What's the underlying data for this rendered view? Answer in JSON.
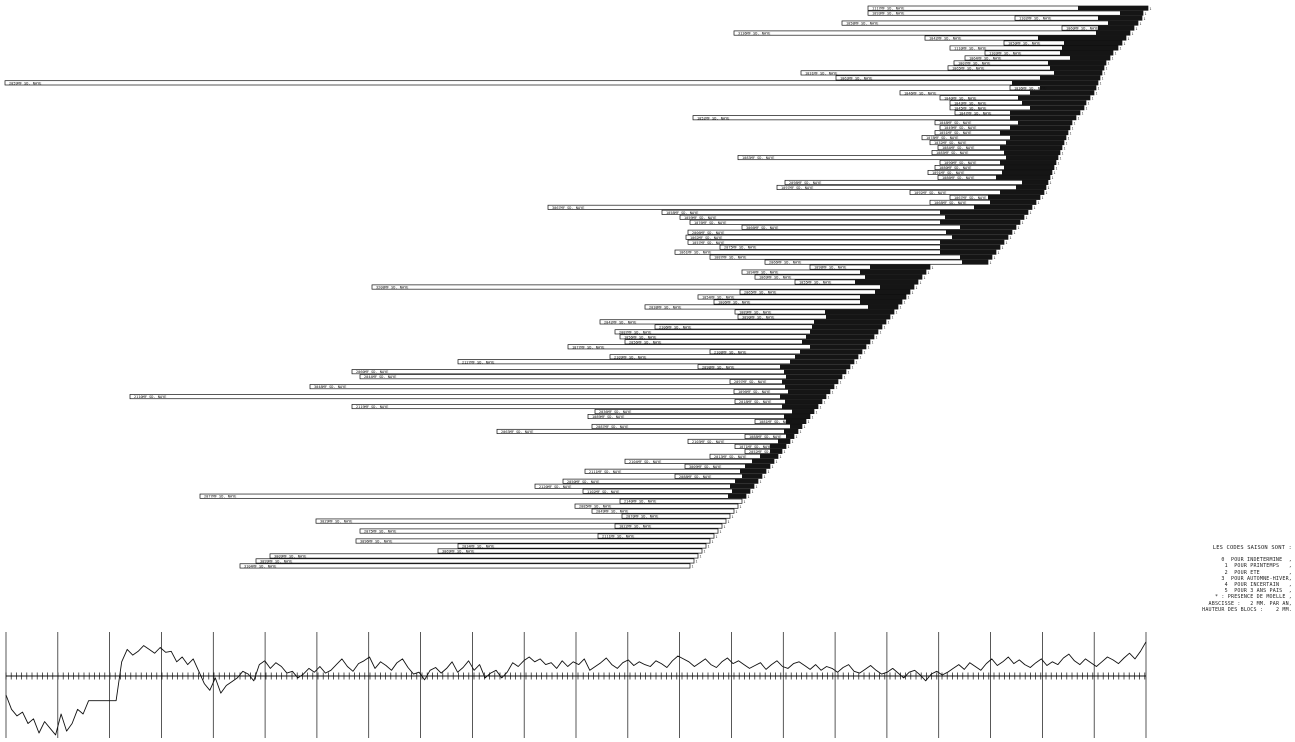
{
  "chart_data": {
    "type": "bar",
    "description_kind": "dendrochronology block diagram: horizontal sample bars (white = sapwood-free rings, black = sapwood/last rings) aligned on a common end axis, with a master chronology curve below",
    "sample_label_suffix": "SD. NAYE",
    "samples": [
      {
        "id": "1117MF",
        "start": 868,
        "end": 1148,
        "black_from": 1078
      },
      {
        "id": "1093MF",
        "start": 868,
        "end": 1143,
        "black_from": 1120
      },
      {
        "id": "1102MF",
        "start": 1015,
        "end": 1142,
        "black_from": 1098
      },
      {
        "id": "1058MF",
        "start": 842,
        "end": 1138,
        "black_from": 1108
      },
      {
        "id": "1060MF",
        "start": 1062,
        "end": 1134,
        "black_from": 1098
      },
      {
        "id": "3136MF",
        "start": 734,
        "end": 1130,
        "black_from": 1096
      },
      {
        "id": "1042MF",
        "start": 925,
        "end": 1126,
        "black_from": 1038
      },
      {
        "id": "1050MF",
        "start": 1004,
        "end": 1122,
        "black_from": 1064
      },
      {
        "id": "1110MF",
        "start": 950,
        "end": 1118,
        "black_from": 1062
      },
      {
        "id": "1103MF",
        "start": 985,
        "end": 1113,
        "black_from": 1060
      },
      {
        "id": "1064MF",
        "start": 965,
        "end": 1110,
        "black_from": 1070
      },
      {
        "id": "1007MF",
        "start": 954,
        "end": 1106,
        "black_from": 1048
      },
      {
        "id": "1065MF",
        "start": 948,
        "end": 1104,
        "black_from": 1050
      },
      {
        "id": "1031MF",
        "start": 801,
        "end": 1102,
        "black_from": 1054
      },
      {
        "id": "1063MF",
        "start": 836,
        "end": 1100,
        "black_from": 1040
      },
      {
        "id": "2059MF",
        "start": 5,
        "end": 1098,
        "black_from": 1012
      },
      {
        "id": "1036MF",
        "start": 1010,
        "end": 1096,
        "black_from": 1040
      },
      {
        "id": "1046MF",
        "start": 900,
        "end": 1094,
        "black_from": 1030
      },
      {
        "id": "1040MF",
        "start": 940,
        "end": 1090,
        "black_from": 1018
      },
      {
        "id": "1043MF",
        "start": 950,
        "end": 1086,
        "black_from": 1022
      },
      {
        "id": "1045MF",
        "start": 950,
        "end": 1084,
        "black_from": 1030
      },
      {
        "id": "1047MF",
        "start": 955,
        "end": 1080,
        "black_from": 1010
      },
      {
        "id": "1052MF",
        "start": 693,
        "end": 1076,
        "black_from": 1010
      },
      {
        "id": "1048MF",
        "start": 935,
        "end": 1072,
        "black_from": 1018
      },
      {
        "id": "1049MF",
        "start": 940,
        "end": 1070,
        "black_from": 1010
      },
      {
        "id": "1051MF",
        "start": 935,
        "end": 1068,
        "black_from": 1000
      },
      {
        "id": "1078MF",
        "start": 922,
        "end": 1066,
        "black_from": 1010
      },
      {
        "id": "1032MF",
        "start": 930,
        "end": 1064,
        "black_from": 1006
      },
      {
        "id": "1084MF",
        "start": 938,
        "end": 1062,
        "black_from": 1000
      },
      {
        "id": "1085MF",
        "start": 932,
        "end": 1060,
        "black_from": 1004
      },
      {
        "id": "1083MF",
        "start": 738,
        "end": 1058,
        "black_from": 1006
      },
      {
        "id": "1090MF",
        "start": 940,
        "end": 1056,
        "black_from": 1000
      },
      {
        "id": "1080MF",
        "start": 935,
        "end": 1054,
        "black_from": 1004
      },
      {
        "id": "1091MF",
        "start": 928,
        "end": 1052,
        "black_from": 1002
      },
      {
        "id": "1086MF",
        "start": 938,
        "end": 1050,
        "black_from": 996
      },
      {
        "id": "2098MF",
        "start": 785,
        "end": 1048,
        "black_from": 1022
      },
      {
        "id": "1097MF",
        "start": 777,
        "end": 1046,
        "black_from": 1016
      },
      {
        "id": "1092MF",
        "start": 910,
        "end": 1044,
        "black_from": 1000
      },
      {
        "id": "1067MF",
        "start": 950,
        "end": 1040,
        "black_from": 988
      },
      {
        "id": "1068MF",
        "start": 930,
        "end": 1036,
        "black_from": 990
      },
      {
        "id": "3067MF",
        "start": 548,
        "end": 1032,
        "black_from": 974
      },
      {
        "id": "1058MF",
        "start": 662,
        "end": 1028,
        "black_from": 940
      },
      {
        "id": "1059MF",
        "start": 680,
        "end": 1024,
        "black_from": 945
      },
      {
        "id": "1076MF",
        "start": 690,
        "end": 1020,
        "black_from": 940
      },
      {
        "id": "3066MF",
        "start": 742,
        "end": 1016,
        "black_from": 960
      },
      {
        "id": "2006MF",
        "start": 688,
        "end": 1012,
        "black_from": 946
      },
      {
        "id": "1062MF",
        "start": 686,
        "end": 1008,
        "black_from": 952
      },
      {
        "id": "1057MF",
        "start": 688,
        "end": 1004,
        "black_from": 940
      },
      {
        "id": "2075MF",
        "start": 720,
        "end": 1000,
        "black_from": 940
      },
      {
        "id": "1061MF",
        "start": 675,
        "end": 996,
        "black_from": 940
      },
      {
        "id": "1087MF",
        "start": 710,
        "end": 992,
        "black_from": 960
      },
      {
        "id": "2066MF",
        "start": 765,
        "end": 988,
        "black_from": 962
      },
      {
        "id": "1098MF",
        "start": 810,
        "end": 930,
        "black_from": 870
      },
      {
        "id": "1094MF",
        "start": 742,
        "end": 926,
        "black_from": 860
      },
      {
        "id": "1069MF",
        "start": 755,
        "end": 922,
        "black_from": 865
      },
      {
        "id": "1055MF",
        "start": 795,
        "end": 918,
        "black_from": 855
      },
      {
        "id": "3208MF",
        "start": 372,
        "end": 914,
        "black_from": 880
      },
      {
        "id": "2065MF",
        "start": 740,
        "end": 910,
        "black_from": 875
      },
      {
        "id": "1054MF",
        "start": 698,
        "end": 906,
        "black_from": 860
      },
      {
        "id": "1006MF",
        "start": 714,
        "end": 902,
        "black_from": 860
      },
      {
        "id": "2038MF",
        "start": 645,
        "end": 898,
        "black_from": 868
      },
      {
        "id": "1089MF",
        "start": 735,
        "end": 894,
        "black_from": 825
      },
      {
        "id": "3090MF",
        "start": 738,
        "end": 890,
        "black_from": 826
      },
      {
        "id": "2042MF",
        "start": 600,
        "end": 886,
        "black_from": 814
      },
      {
        "id": "2106MF",
        "start": 655,
        "end": 882,
        "black_from": 812
      },
      {
        "id": "2087MF",
        "start": 615,
        "end": 878,
        "black_from": 810
      },
      {
        "id": "1056MF",
        "start": 620,
        "end": 874,
        "black_from": 806
      },
      {
        "id": "2056MF",
        "start": 625,
        "end": 870,
        "black_from": 802
      },
      {
        "id": "1077MF",
        "start": 568,
        "end": 866,
        "black_from": 810
      },
      {
        "id": "2108MF",
        "start": 710,
        "end": 862,
        "black_from": 800
      },
      {
        "id": "2109MF",
        "start": 610,
        "end": 858,
        "black_from": 795
      },
      {
        "id": "2127MF",
        "start": 458,
        "end": 854,
        "black_from": 790
      },
      {
        "id": "2098MF",
        "start": 698,
        "end": 850,
        "black_from": 780
      },
      {
        "id": "2060MF",
        "start": 352,
        "end": 846,
        "black_from": 784
      },
      {
        "id": "2044MF",
        "start": 360,
        "end": 842,
        "black_from": 786
      },
      {
        "id": "2097MF",
        "start": 730,
        "end": 838,
        "black_from": 782
      },
      {
        "id": "3048MF",
        "start": 310,
        "end": 834,
        "black_from": 785
      },
      {
        "id": "1096MF",
        "start": 734,
        "end": 830,
        "black_from": 788
      },
      {
        "id": "2110MF",
        "start": 130,
        "end": 826,
        "black_from": 780
      },
      {
        "id": "2018MF",
        "start": 735,
        "end": 822,
        "black_from": 785
      },
      {
        "id": "2119MF",
        "start": 352,
        "end": 818,
        "black_from": 782
      },
      {
        "id": "2036MF",
        "start": 595,
        "end": 814,
        "black_from": 792
      },
      {
        "id": "1089MF",
        "start": 588,
        "end": 810,
        "black_from": 784
      },
      {
        "id": "1081MF",
        "start": 755,
        "end": 806,
        "black_from": 786
      },
      {
        "id": "2087MF",
        "start": 592,
        "end": 802,
        "black_from": 790
      },
      {
        "id": "2063MF",
        "start": 497,
        "end": 798,
        "black_from": 784
      },
      {
        "id": "1088MF",
        "start": 745,
        "end": 794,
        "black_from": 786
      },
      {
        "id": "2103MF",
        "start": 688,
        "end": 790,
        "black_from": 778
      },
      {
        "id": "1071MF",
        "start": 735,
        "end": 786,
        "black_from": 770
      },
      {
        "id": "2052MF",
        "start": 745,
        "end": 782,
        "black_from": 770
      },
      {
        "id": "2013MF",
        "start": 710,
        "end": 778,
        "black_from": 760
      },
      {
        "id": "2104MF",
        "start": 625,
        "end": 774,
        "black_from": 752
      },
      {
        "id": "3009MF",
        "start": 685,
        "end": 770,
        "black_from": 745
      },
      {
        "id": "2111MF",
        "start": 585,
        "end": 766,
        "black_from": 740
      },
      {
        "id": "2088MF",
        "start": 675,
        "end": 762,
        "black_from": 742
      },
      {
        "id": "2050MF",
        "start": 563,
        "end": 758,
        "black_from": 735
      },
      {
        "id": "2120MF",
        "start": 535,
        "end": 754,
        "black_from": 730
      },
      {
        "id": "1102MF",
        "start": 583,
        "end": 750,
        "black_from": 732
      },
      {
        "id": "2077MF",
        "start": 200,
        "end": 746,
        "black_from": 728
      },
      {
        "id": "2140MF",
        "start": 620,
        "end": 742,
        "black_from": 742
      },
      {
        "id": "2085MF",
        "start": 575,
        "end": 738,
        "black_from": 738
      },
      {
        "id": "2049MF",
        "start": 592,
        "end": 734,
        "black_from": 734
      },
      {
        "id": "2070MF",
        "start": 622,
        "end": 730,
        "black_from": 730
      },
      {
        "id": "3029MF",
        "start": 316,
        "end": 726,
        "black_from": 726
      },
      {
        "id": "1022MF",
        "start": 615,
        "end": 722,
        "black_from": 722
      },
      {
        "id": "2075MF",
        "start": 360,
        "end": 718,
        "black_from": 718
      },
      {
        "id": "2111MF",
        "start": 598,
        "end": 714,
        "black_from": 714
      },
      {
        "id": "3096MF",
        "start": 356,
        "end": 710,
        "black_from": 710
      },
      {
        "id": "2034MF",
        "start": 458,
        "end": 706,
        "black_from": 706
      },
      {
        "id": "3069MF",
        "start": 438,
        "end": 702,
        "black_from": 702
      },
      {
        "id": "3009MF",
        "start": 270,
        "end": 698,
        "black_from": 698
      },
      {
        "id": "3099MF",
        "start": 256,
        "end": 694,
        "black_from": 694
      },
      {
        "id": "3104MF",
        "start": 240,
        "end": 690,
        "black_from": 690
      }
    ],
    "curve": {
      "description": "master chronology index curve, values relative to baseline (positive = above axis)",
      "values": [
        -2,
        -3.5,
        -4.2,
        -3.8,
        -5,
        -4.5,
        -6,
        -4.8,
        -5.5,
        -6.2,
        -4,
        -5.8,
        -5,
        -3.5,
        -4,
        -2.6,
        -2.6,
        -2.6,
        -2.6,
        -2.6,
        -2.6,
        1.5,
        2.8,
        2.2,
        2.6,
        3.2,
        2.8,
        2.4,
        3,
        2.5,
        2.6,
        1.5,
        2,
        1.2,
        1.8,
        0.5,
        -0.8,
        -1.5,
        -0.2,
        -1.8,
        -1,
        -0.6,
        -0.2,
        0.5,
        0.2,
        -0.5,
        1.2,
        1.6,
        0.8,
        1.4,
        1,
        0.3,
        0.5,
        -0.2,
        0.2,
        0.8,
        0.4,
        1,
        0.3,
        0.6,
        1.2,
        1.8,
        1,
        0.5,
        1.3,
        1.6,
        2,
        0.8,
        1.5,
        1.1,
        0.6,
        1.4,
        1.8,
        0.9,
        0.2,
        0.4,
        -0.4,
        0.6,
        0.9,
        0.3,
        0.8,
        1.5,
        0.4,
        0.9,
        1.6,
        0.6,
        1.2,
        -0.2,
        0.3,
        0.6,
        -0.2,
        0.4,
        1.4,
        1,
        1.6,
        2,
        1.5,
        1.8,
        1.2,
        1.4,
        0.8,
        1.6,
        1,
        1.5,
        1.2,
        1.8,
        0.6,
        1,
        1.4,
        1.9,
        1.2,
        0.8,
        1.4,
        1.7,
        1.1,
        1.5,
        1.2,
        1,
        1.6,
        1.3,
        0.9,
        1.6,
        2.1,
        1.8,
        1.5,
        1,
        1.4,
        1.8,
        1.2,
        0.9,
        1.5,
        1.9,
        1.3,
        1.6,
        1.2,
        0.8,
        1.1,
        1.4,
        0.7,
        1.2,
        1.6,
        1,
        0.8,
        1.3,
        1.5,
        1.1,
        0.7,
        1.2,
        0.6,
        1,
        0.8,
        0.4,
        0.9,
        1.2,
        0.5,
        0.3,
        0.7,
        1.1,
        0.6,
        0.2,
        0.4,
        0.8,
        0.3,
        -0.2,
        0.4,
        0.6,
        0.1,
        -0.5,
        0.2,
        0.5,
        0.1,
        0.4,
        0.8,
        1.2,
        0.7,
        1.4,
        1,
        0.6,
        1.3,
        1.8,
        1.1,
        1.5,
        2,
        1.3,
        1.7,
        1.2,
        0.9,
        1.4,
        1.8,
        1.1,
        1.5,
        1.2,
        1.9,
        2.3,
        1.6,
        1.2,
        1.8,
        1.4,
        1,
        1.5,
        2,
        1.7,
        1.3,
        1.9,
        2.4,
        1.8,
        2.6,
        3.6
      ]
    },
    "curve_axis": {
      "vertical_gridlines": 22,
      "baseline_ticks": true
    }
  },
  "legend": {
    "title": "LES CODES SAISON SONT :",
    "lines": [
      "0  POUR INDETERMINE  ,",
      "1  POUR PRINTEMPS   ,",
      "2  POUR ETE         ,",
      "3  POUR AUTOMNE-HIVER,",
      "4  POUR INCERTAIN   ,",
      "5  POUR 3 ANS PAIS  ,",
      "* : PRESENCE DE MOELLE ,",
      "ABSCISSE :   2 MM. PAR AN,",
      "HAUTEUR DES BLOCS :    2 MM."
    ]
  },
  "colors": {
    "ink": "#111111",
    "paper": "#ffffff",
    "sapwood": "#151515"
  }
}
